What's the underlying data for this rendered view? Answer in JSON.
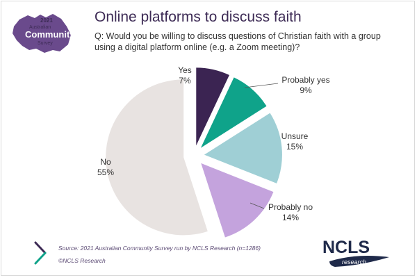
{
  "logo_acs": {
    "year": "2021",
    "line1": "Australian",
    "line2": "Community",
    "line3": "Survey"
  },
  "header": {
    "title": "Online platforms to discuss faith",
    "question": "Q: Would you be willing to discuss questions of Christian faith with a group using a digital platform online (e.g. a Zoom meeting)?"
  },
  "chart_data": {
    "type": "pie",
    "title": "",
    "unit": "%",
    "slices": [
      {
        "label": "Yes",
        "value": 7,
        "value_text": "7%",
        "color": "#3b2452",
        "exploded": true
      },
      {
        "label": "Probably yes",
        "value": 9,
        "value_text": "9%",
        "color": "#0fa38a",
        "exploded": true
      },
      {
        "label": "Unsure",
        "value": 15,
        "value_text": "15%",
        "color": "#9fcfd5",
        "exploded": true
      },
      {
        "label": "Probably no",
        "value": 14,
        "value_text": "14%",
        "color": "#c4a3dd",
        "exploded": true
      },
      {
        "label": "No",
        "value": 55,
        "value_text": "55%",
        "color": "#e8e3e1",
        "exploded": true
      }
    ],
    "legend": "none",
    "data_labels": "outside"
  },
  "footer": {
    "source": "Source: 2021 Australian Community Survey run by NCLS Research (n=1286)",
    "copyright": "©NCLS Research"
  },
  "logo_ncls": {
    "main": "NCLS",
    "sub": "research"
  }
}
